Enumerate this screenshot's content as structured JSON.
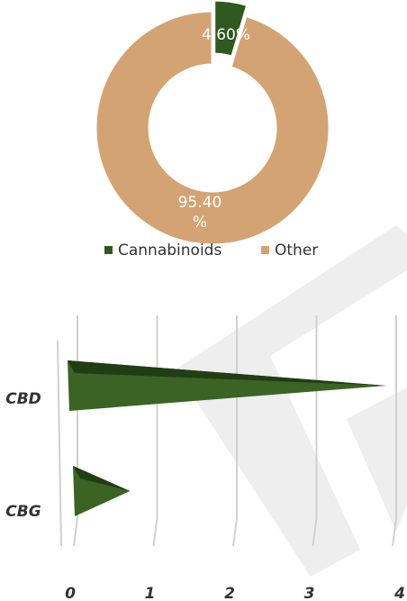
{
  "charts": [
    {
      "chart_data": {
        "type": "pie",
        "variant": "donut",
        "title": "",
        "slices": [
          {
            "label": "Cannabinoids",
            "value": 4.6,
            "display": "4.60%",
            "color": "#2E5A1F",
            "exploded": true
          },
          {
            "label": "Other",
            "value": 95.4,
            "display": "95.40%",
            "color": "#D4A373",
            "exploded": false
          }
        ],
        "data_label_color": "#ffffff",
        "legend": {
          "position": "bottom",
          "items": [
            {
              "label": "Cannabinoids",
              "color": "#2E5A1F"
            },
            {
              "label": "Other",
              "color": "#D4A373"
            }
          ]
        }
      }
    },
    {
      "chart_data": {
        "type": "bar",
        "orientation": "horizontal",
        "style": "3d-cone",
        "title": "",
        "xlabel": "",
        "ylabel": "",
        "categories": [
          "CBD",
          "CBG"
        ],
        "values": [
          3.9,
          0.75
        ],
        "xlim": [
          0,
          4
        ],
        "x_ticks": [
          "0",
          "1",
          "2",
          "3",
          "4"
        ],
        "grid": true,
        "bar_color": "#3A6324",
        "bar_shadow_color": "#203D14",
        "grid_color": "#D0D0D0",
        "tick_label_color": "#333333"
      }
    }
  ],
  "watermark": {
    "color": "#EEEEEE"
  }
}
